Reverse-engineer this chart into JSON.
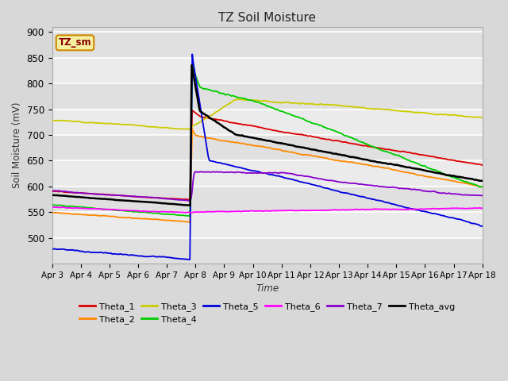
{
  "title": "TZ Soil Moisture",
  "xlabel": "Time",
  "ylabel": "Soil Moisture (mV)",
  "ylim": [
    450,
    910
  ],
  "background_color": "#d8d8d8",
  "plot_bg_color": "#e0e0e0",
  "grid_color": "#f0f0f0",
  "label_box": "TZ_sm",
  "label_box_bg": "#f5f0a0",
  "label_box_edge": "#cc8800",
  "label_box_text": "#880000",
  "series_colors": {
    "Theta_1": "#dd0000",
    "Theta_2": "#ff8800",
    "Theta_3": "#cccc00",
    "Theta_4": "#00cc00",
    "Theta_5": "#0000dd",
    "Theta_6": "#ff00ff",
    "Theta_7": "#8800cc",
    "Theta_avg": "#000000"
  },
  "x_tick_days": [
    3,
    4,
    5,
    6,
    7,
    8,
    9,
    10,
    11,
    12,
    13,
    14,
    15,
    16,
    17,
    18
  ],
  "yticks": [
    500,
    550,
    600,
    650,
    700,
    750,
    800,
    850,
    900
  ],
  "spike_day": 7.85,
  "x_start": 3,
  "x_end": 18
}
